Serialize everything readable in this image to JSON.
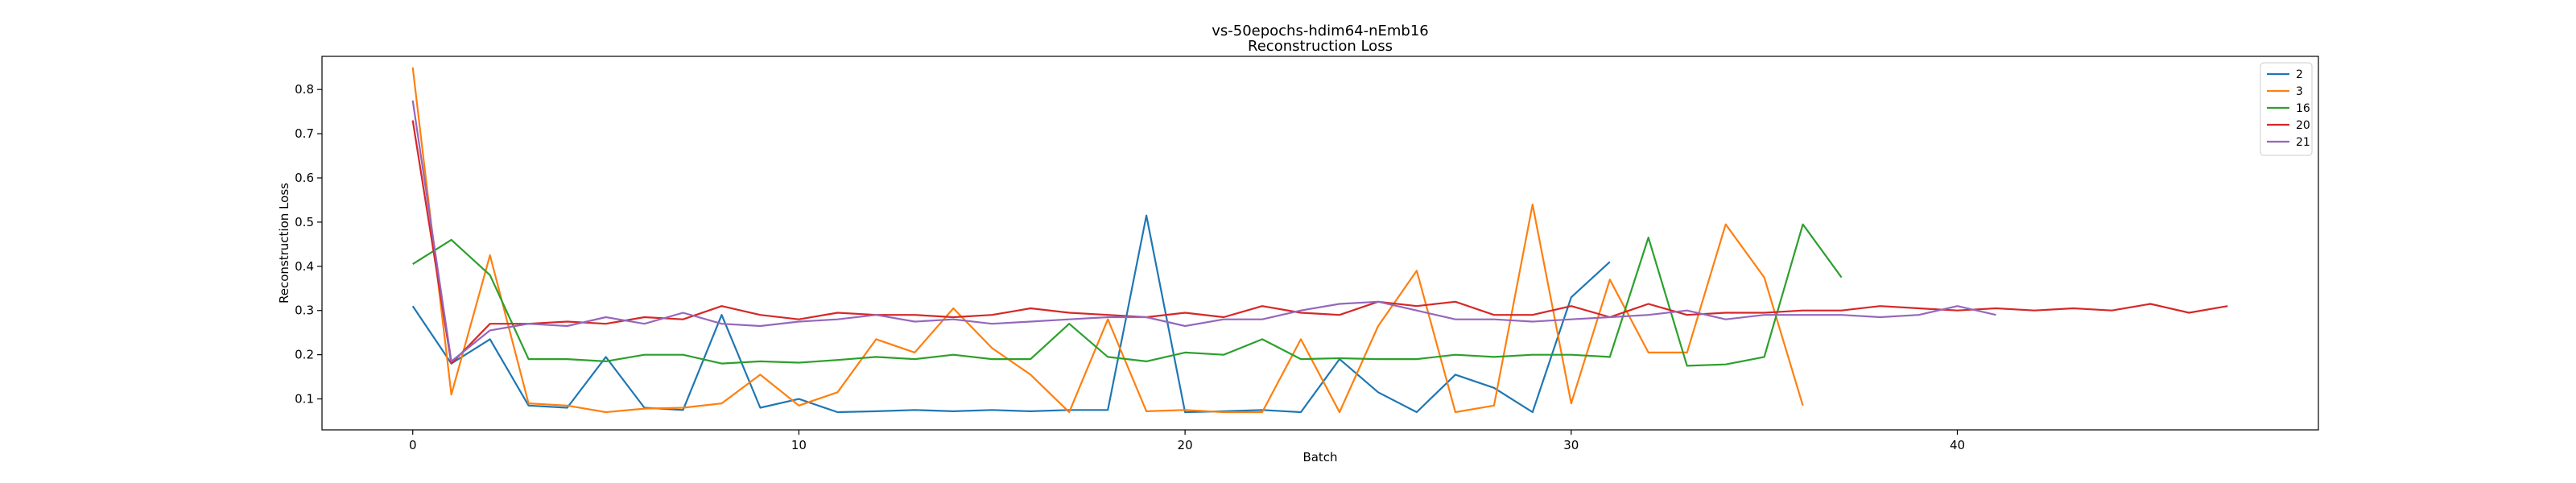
{
  "chart_data": {
    "type": "line",
    "title": "vs-50epochs-hdim64-nEmb16",
    "subtitle": "Reconstruction Loss",
    "xlabel": "Batch",
    "ylabel": "Reconstruction Loss",
    "xlim": [
      -2.35,
      49.35
    ],
    "ylim": [
      0.03,
      0.875
    ],
    "xticks": [
      0,
      10,
      20,
      30,
      40
    ],
    "yticks": [
      0.1,
      0.2,
      0.3,
      0.4,
      0.5,
      0.6,
      0.7,
      0.8
    ],
    "grid": false,
    "legend_position": "top-right",
    "series": [
      {
        "name": "2",
        "color": "#1f77b4",
        "values": [
          0.31,
          0.18,
          0.235,
          0.085,
          0.08,
          0.195,
          0.08,
          0.075,
          0.29,
          0.08,
          0.1,
          0.07,
          0.072,
          0.075,
          0.072,
          0.075,
          0.072,
          0.075,
          0.075,
          0.515,
          0.07,
          0.072,
          0.075,
          0.07,
          0.19,
          0.115,
          0.07,
          0.155,
          0.125,
          0.07,
          0.33,
          0.41
        ]
      },
      {
        "name": "3",
        "color": "#ff7f0e",
        "values": [
          0.85,
          0.11,
          0.425,
          0.09,
          0.085,
          0.07,
          0.078,
          0.08,
          0.09,
          0.155,
          0.085,
          0.115,
          0.235,
          0.205,
          0.305,
          0.215,
          0.155,
          0.07,
          0.28,
          0.072,
          0.075,
          0.07,
          0.07,
          0.235,
          0.07,
          0.265,
          0.39,
          0.07,
          0.085,
          0.54,
          0.09,
          0.37,
          0.205,
          0.205,
          0.495,
          0.375,
          0.085
        ]
      },
      {
        "name": "16",
        "color": "#2ca02c",
        "values": [
          0.405,
          0.46,
          0.38,
          0.19,
          0.19,
          0.185,
          0.2,
          0.2,
          0.18,
          0.185,
          0.182,
          0.188,
          0.195,
          0.19,
          0.2,
          0.19,
          0.19,
          0.27,
          0.195,
          0.185,
          0.205,
          0.2,
          0.235,
          0.19,
          0.192,
          0.19,
          0.19,
          0.2,
          0.195,
          0.2,
          0.2,
          0.195,
          0.465,
          0.175,
          0.178,
          0.195,
          0.495,
          0.375
        ]
      },
      {
        "name": "20",
        "color": "#d62728",
        "values": [
          0.73,
          0.18,
          0.27,
          0.27,
          0.275,
          0.27,
          0.285,
          0.28,
          0.31,
          0.29,
          0.28,
          0.295,
          0.29,
          0.29,
          0.285,
          0.29,
          0.305,
          0.295,
          0.29,
          0.285,
          0.295,
          0.285,
          0.31,
          0.295,
          0.29,
          0.32,
          0.31,
          0.32,
          0.29,
          0.29,
          0.31,
          0.285,
          0.315,
          0.29,
          0.295,
          0.295,
          0.3,
          0.3,
          0.31,
          0.305,
          0.3,
          0.305,
          0.3,
          0.305,
          0.3,
          0.315,
          0.295,
          0.31
        ]
      },
      {
        "name": "21",
        "color": "#9467bd",
        "values": [
          0.775,
          0.185,
          0.255,
          0.27,
          0.265,
          0.285,
          0.27,
          0.295,
          0.27,
          0.265,
          0.275,
          0.28,
          0.29,
          0.275,
          0.28,
          0.27,
          0.275,
          0.28,
          0.285,
          0.285,
          0.265,
          0.28,
          0.28,
          0.3,
          0.315,
          0.32,
          0.3,
          0.28,
          0.28,
          0.275,
          0.28,
          0.285,
          0.29,
          0.3,
          0.28,
          0.29,
          0.29,
          0.29,
          0.285,
          0.29,
          0.31,
          0.29
        ]
      }
    ]
  }
}
